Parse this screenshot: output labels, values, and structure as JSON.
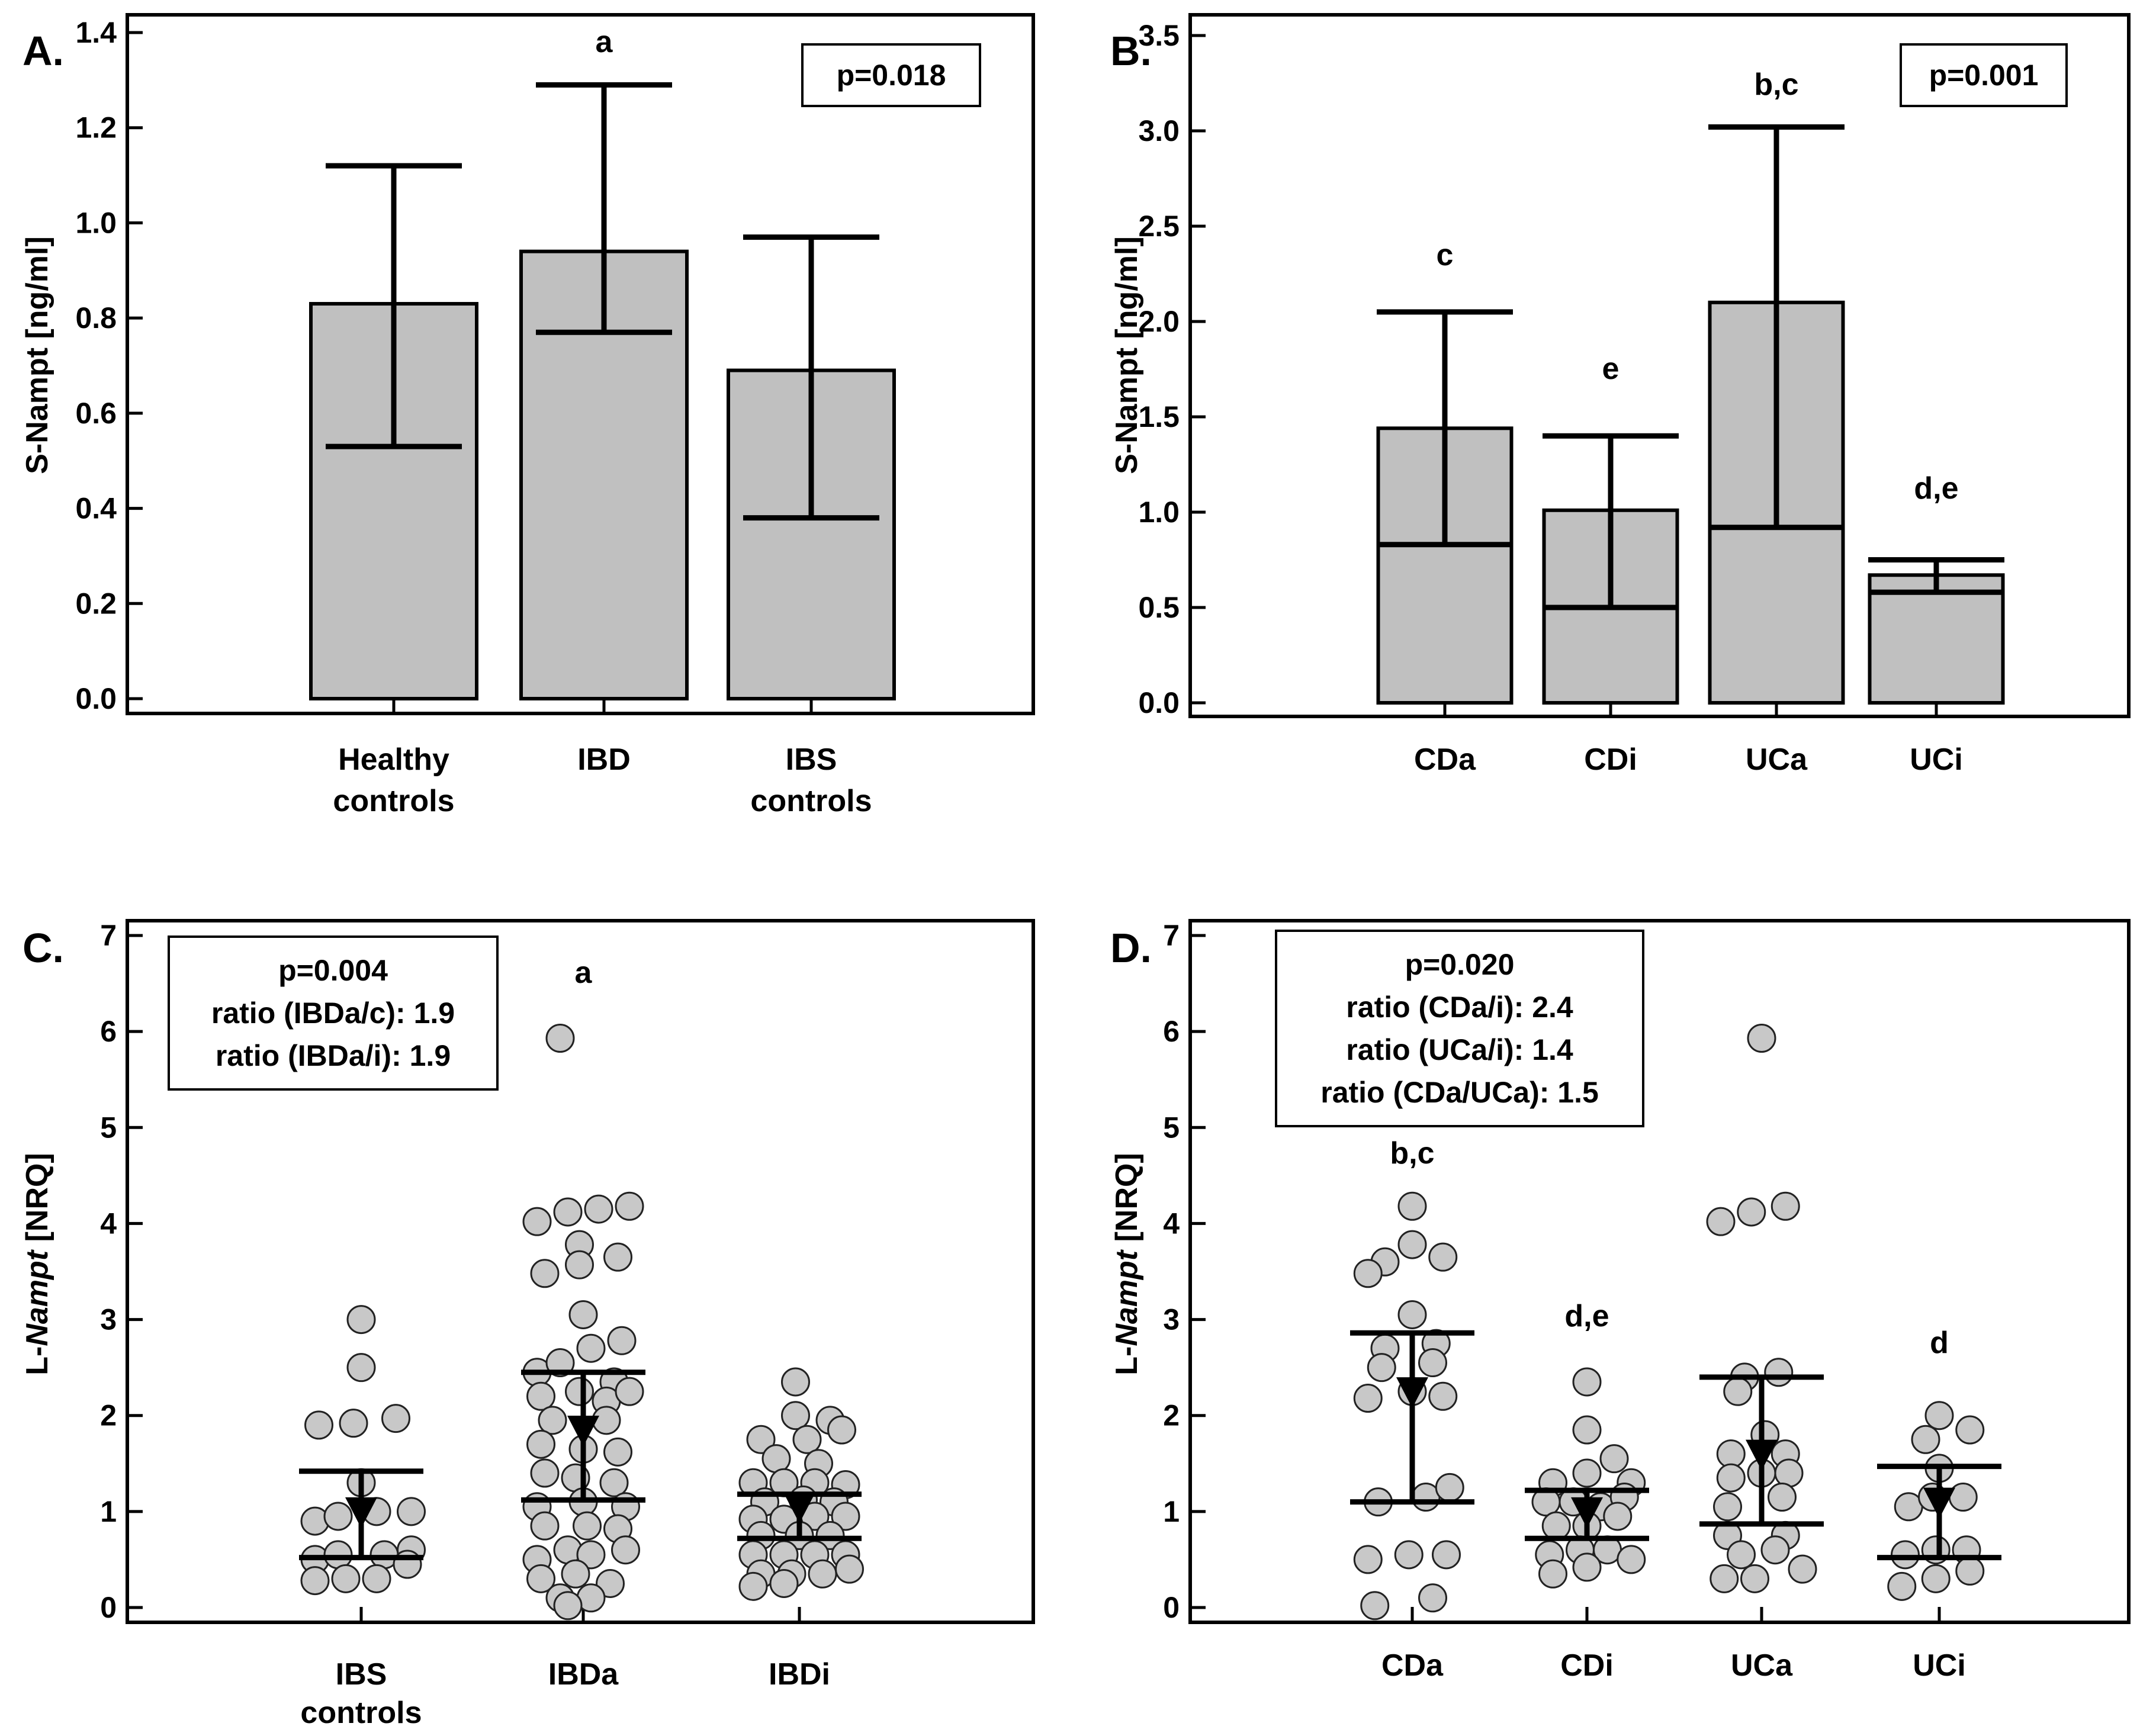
{
  "colors": {
    "bar_fill": "#c0c0c0",
    "point_fill": "#c8c8c8",
    "line": "#000000",
    "background": "#ffffff"
  },
  "chart_data": [
    {
      "panel": "A.",
      "type": "bar",
      "ylabel": "S-Nampt [ng/ml]",
      "ylim": [
        0,
        1.4
      ],
      "yticks": [
        "0.0",
        "0.2",
        "0.4",
        "0.6",
        "0.8",
        "1.0",
        "1.2",
        "1.4"
      ],
      "categories": [
        [
          "Healthy",
          "controls"
        ],
        [
          "IBD"
        ],
        [
          "IBS",
          "controls"
        ]
      ],
      "values": [
        0.83,
        0.94,
        0.69
      ],
      "err_low": [
        0.53,
        0.77,
        0.38
      ],
      "err_high": [
        1.12,
        1.29,
        0.97
      ],
      "letters": [
        "",
        "a",
        ""
      ],
      "box": [
        "p=0.018"
      ]
    },
    {
      "panel": "B.",
      "type": "bar",
      "ylabel": "S-Nampt [ng/ml]",
      "ylim": [
        0,
        3.5
      ],
      "yticks": [
        "0.0",
        "0.5",
        "1.0",
        "1.5",
        "2.0",
        "2.5",
        "3.0",
        "3.5"
      ],
      "categories": [
        [
          "CDa"
        ],
        [
          "CDi"
        ],
        [
          "UCa"
        ],
        [
          "UCi"
        ]
      ],
      "values": [
        1.44,
        1.01,
        2.1,
        0.67
      ],
      "err_low": [
        0.83,
        0.5,
        0.92,
        0.58
      ],
      "err_high": [
        2.05,
        1.4,
        3.02,
        0.75
      ],
      "letters": [
        "c",
        "e",
        "b,c",
        "d,e"
      ],
      "box": [
        "p=0.001"
      ]
    },
    {
      "panel": "C.",
      "type": "scatter",
      "ylabel_prefix": "L-",
      "ylabel_italic": "Nampt",
      "ylabel_suffix": " [NRQ]",
      "ylim": [
        0,
        7
      ],
      "yticks": [
        "0",
        "1",
        "2",
        "3",
        "4",
        "5",
        "6",
        "7"
      ],
      "categories": [
        [
          "IBS",
          "controls"
        ],
        [
          "IBDa"
        ],
        [
          "IBDi"
        ]
      ],
      "median": [
        1.0,
        1.85,
        1.05
      ],
      "q_low": [
        0.52,
        1.12,
        0.72
      ],
      "q_high": [
        1.42,
        2.45,
        1.18
      ],
      "letters": [
        "",
        "a",
        ""
      ],
      "box": [
        "p=0.004",
        "ratio (IBDa/c): 1.9",
        "ratio (IBDa/i): 1.9"
      ],
      "points": [
        [
          [
            -0.55,
            1.9
          ],
          [
            -0.1,
            1.92
          ],
          [
            0.45,
            1.97
          ],
          [
            0.0,
            1.3
          ],
          [
            0.0,
            2.5
          ],
          [
            0.0,
            3.0
          ],
          [
            -0.6,
            0.9
          ],
          [
            -0.3,
            0.95
          ],
          [
            0.2,
            1.0
          ],
          [
            0.65,
            1.0
          ],
          [
            -0.6,
            0.5
          ],
          [
            -0.3,
            0.55
          ],
          [
            0.3,
            0.55
          ],
          [
            0.65,
            0.6
          ],
          [
            -0.6,
            0.28
          ],
          [
            -0.2,
            0.3
          ],
          [
            0.2,
            0.3
          ],
          [
            0.6,
            0.45
          ]
        ],
        [
          [
            -0.3,
            5.93
          ],
          [
            -0.6,
            4.02
          ],
          [
            -0.2,
            4.12
          ],
          [
            0.2,
            4.15
          ],
          [
            0.6,
            4.18
          ],
          [
            -0.05,
            3.78
          ],
          [
            0.45,
            3.65
          ],
          [
            -0.05,
            3.57
          ],
          [
            -0.5,
            3.48
          ],
          [
            0.0,
            3.05
          ],
          [
            -0.6,
            2.45
          ],
          [
            0.1,
            2.7
          ],
          [
            0.5,
            2.78
          ],
          [
            -0.3,
            2.55
          ],
          [
            0.4,
            2.35
          ],
          [
            -0.55,
            2.2
          ],
          [
            -0.05,
            2.25
          ],
          [
            0.3,
            2.15
          ],
          [
            0.6,
            2.25
          ],
          [
            -0.4,
            1.95
          ],
          [
            0.3,
            1.95
          ],
          [
            -0.55,
            1.7
          ],
          [
            0.0,
            1.65
          ],
          [
            0.45,
            1.62
          ],
          [
            -0.5,
            1.4
          ],
          [
            -0.1,
            1.35
          ],
          [
            0.4,
            1.3
          ],
          [
            -0.6,
            1.05
          ],
          [
            0.0,
            1.1
          ],
          [
            0.55,
            1.05
          ],
          [
            -0.5,
            0.85
          ],
          [
            0.05,
            0.85
          ],
          [
            0.45,
            0.82
          ],
          [
            -0.6,
            0.5
          ],
          [
            -0.2,
            0.6
          ],
          [
            0.1,
            0.55
          ],
          [
            0.55,
            0.6
          ],
          [
            -0.55,
            0.3
          ],
          [
            -0.1,
            0.35
          ],
          [
            0.35,
            0.25
          ],
          [
            -0.3,
            0.1
          ],
          [
            0.1,
            0.1
          ],
          [
            -0.2,
            0.02
          ]
        ],
        [
          [
            -0.05,
            2.35
          ],
          [
            -0.05,
            2.0
          ],
          [
            0.4,
            1.95
          ],
          [
            -0.5,
            1.75
          ],
          [
            0.1,
            1.75
          ],
          [
            0.55,
            1.85
          ],
          [
            -0.3,
            1.55
          ],
          [
            0.25,
            1.5
          ],
          [
            -0.6,
            1.3
          ],
          [
            -0.2,
            1.3
          ],
          [
            0.2,
            1.3
          ],
          [
            0.6,
            1.28
          ],
          [
            -0.45,
            1.1
          ],
          [
            0.05,
            1.12
          ],
          [
            0.45,
            1.1
          ],
          [
            -0.6,
            0.92
          ],
          [
            -0.2,
            0.92
          ],
          [
            0.2,
            0.95
          ],
          [
            0.6,
            0.95
          ],
          [
            -0.5,
            0.75
          ],
          [
            0.0,
            0.75
          ],
          [
            0.4,
            0.75
          ],
          [
            -0.6,
            0.55
          ],
          [
            -0.2,
            0.55
          ],
          [
            0.2,
            0.55
          ],
          [
            0.6,
            0.55
          ],
          [
            -0.5,
            0.35
          ],
          [
            -0.1,
            0.35
          ],
          [
            0.3,
            0.35
          ],
          [
            0.65,
            0.4
          ],
          [
            -0.6,
            0.22
          ],
          [
            -0.2,
            0.25
          ]
        ]
      ]
    },
    {
      "panel": "D.",
      "type": "scatter",
      "ylabel_prefix": "L-",
      "ylabel_italic": "Nampt",
      "ylabel_suffix": " [NRQ]",
      "ylim": [
        0,
        7
      ],
      "yticks": [
        "0",
        "1",
        "2",
        "3",
        "4",
        "5",
        "6",
        "7"
      ],
      "categories": [
        [
          "CDa"
        ],
        [
          "CDi"
        ],
        [
          "UCa"
        ],
        [
          "UCi"
        ]
      ],
      "median": [
        2.25,
        1.0,
        1.6,
        1.1
      ],
      "q_low": [
        1.1,
        0.72,
        0.87,
        0.52
      ],
      "q_high": [
        2.86,
        1.22,
        2.4,
        1.47
      ],
      "letters": [
        "b,c",
        "d,e",
        "",
        "d"
      ],
      "box": [
        "p=0.020",
        "ratio (CDa/i): 2.4",
        "ratio (UCa/i): 1.4",
        "ratio (CDa/UCa): 1.5"
      ],
      "points": [
        [
          [
            0.0,
            4.18
          ],
          [
            -0.4,
            3.6
          ],
          [
            0.0,
            3.78
          ],
          [
            0.45,
            3.65
          ],
          [
            -0.65,
            3.48
          ],
          [
            0.0,
            3.05
          ],
          [
            -0.4,
            2.7
          ],
          [
            0.35,
            2.75
          ],
          [
            -0.45,
            2.5
          ],
          [
            0.3,
            2.55
          ],
          [
            -0.65,
            2.18
          ],
          [
            0.0,
            2.25
          ],
          [
            0.45,
            2.2
          ],
          [
            -0.5,
            1.1
          ],
          [
            0.2,
            1.15
          ],
          [
            0.55,
            1.25
          ],
          [
            -0.65,
            0.5
          ],
          [
            -0.05,
            0.55
          ],
          [
            0.5,
            0.55
          ],
          [
            -0.55,
            0.02
          ],
          [
            0.3,
            0.1
          ]
        ],
        [
          [
            0.0,
            2.35
          ],
          [
            0.0,
            1.85
          ],
          [
            -0.5,
            1.3
          ],
          [
            0.0,
            1.4
          ],
          [
            0.4,
            1.55
          ],
          [
            0.65,
            1.3
          ],
          [
            -0.6,
            1.1
          ],
          [
            -0.2,
            1.1
          ],
          [
            0.2,
            1.05
          ],
          [
            0.55,
            1.15
          ],
          [
            -0.45,
            0.85
          ],
          [
            0.0,
            0.85
          ],
          [
            0.45,
            0.95
          ],
          [
            -0.55,
            0.55
          ],
          [
            -0.1,
            0.6
          ],
          [
            0.3,
            0.6
          ],
          [
            0.65,
            0.5
          ],
          [
            -0.5,
            0.35
          ],
          [
            0.0,
            0.42
          ]
        ],
        [
          [
            0.0,
            5.93
          ],
          [
            -0.6,
            4.02
          ],
          [
            -0.15,
            4.12
          ],
          [
            0.35,
            4.18
          ],
          [
            -0.25,
            2.4
          ],
          [
            0.25,
            2.45
          ],
          [
            -0.35,
            2.25
          ],
          [
            0.05,
            1.8
          ],
          [
            -0.45,
            1.6
          ],
          [
            0.35,
            1.6
          ],
          [
            -0.45,
            1.35
          ],
          [
            0.0,
            1.4
          ],
          [
            0.4,
            1.4
          ],
          [
            -0.5,
            1.05
          ],
          [
            0.3,
            1.15
          ],
          [
            -0.5,
            0.75
          ],
          [
            0.35,
            0.75
          ],
          [
            -0.3,
            0.55
          ],
          [
            0.2,
            0.6
          ],
          [
            0.6,
            0.4
          ],
          [
            -0.55,
            0.3
          ],
          [
            -0.1,
            0.3
          ]
        ],
        [
          [
            -0.2,
            1.75
          ],
          [
            0.0,
            2.0
          ],
          [
            0.45,
            1.85
          ],
          [
            0.0,
            1.45
          ],
          [
            -0.45,
            1.05
          ],
          [
            -0.1,
            1.15
          ],
          [
            0.35,
            1.15
          ],
          [
            -0.5,
            0.55
          ],
          [
            -0.05,
            0.6
          ],
          [
            0.4,
            0.6
          ],
          [
            -0.55,
            0.22
          ],
          [
            -0.05,
            0.3
          ],
          [
            0.45,
            0.38
          ]
        ]
      ]
    }
  ]
}
